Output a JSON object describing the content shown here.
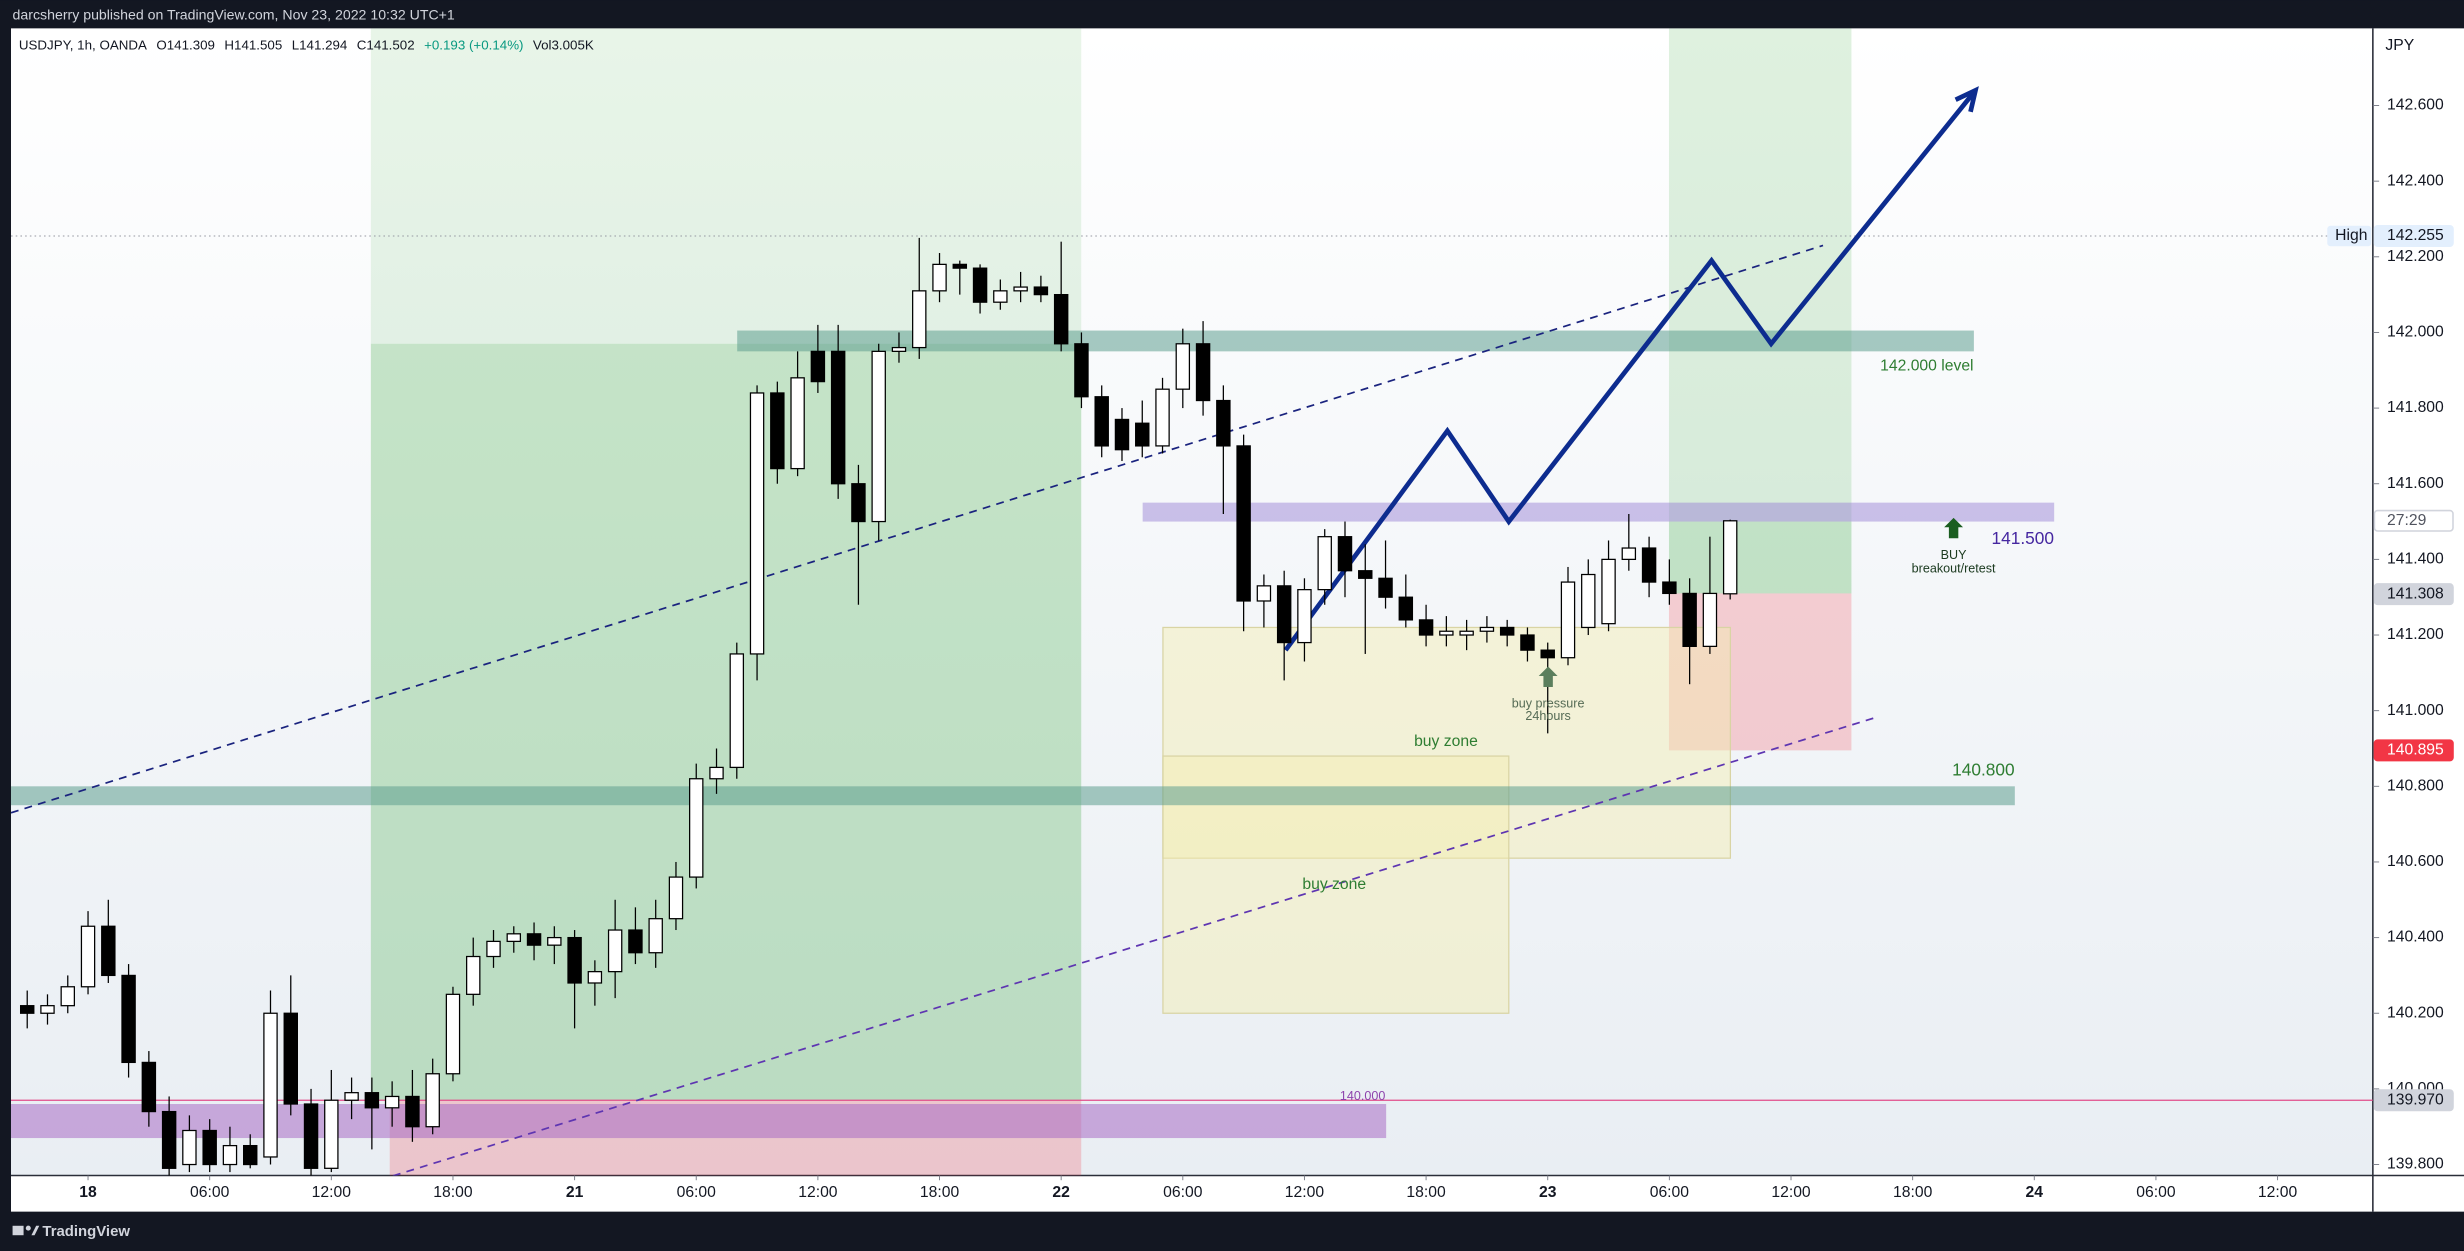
{
  "header": "darcsherry published on TradingView.com, Nov 23, 2022 10:32 UTC+1",
  "footer": "TradingView",
  "chart_data": {
    "type": "candlestick",
    "legend": {
      "symbol": "USDJPY, 1h, OANDA",
      "open": "O141.309",
      "high": "H141.505",
      "low": "L141.294",
      "close": "C141.502",
      "change": "+0.193 (+0.14%)",
      "volume": "Vol3.005K"
    },
    "currency": "JPY",
    "xlim": [
      -3.8,
      112.7
    ],
    "xticks": [
      {
        "value": 0,
        "label": "18"
      },
      {
        "value": 6,
        "label": "06:00"
      },
      {
        "value": 12,
        "label": "12:00"
      },
      {
        "value": 18,
        "label": "18:00"
      },
      {
        "value": 24,
        "label": "21"
      },
      {
        "value": 30,
        "label": "06:00"
      },
      {
        "value": 36,
        "label": "12:00"
      },
      {
        "value": 42,
        "label": "18:00"
      },
      {
        "value": 48,
        "label": "22"
      },
      {
        "value": 54,
        "label": "06:00"
      },
      {
        "value": 60,
        "label": "12:00"
      },
      {
        "value": 66,
        "label": "18:00"
      },
      {
        "value": 72,
        "label": "23"
      },
      {
        "value": 78,
        "label": "06:00"
      },
      {
        "value": 84,
        "label": "12:00"
      },
      {
        "value": 90,
        "label": "18:00"
      },
      {
        "value": 96,
        "label": "24"
      },
      {
        "value": 102,
        "label": "06:00"
      },
      {
        "value": 108,
        "label": "12:00"
      }
    ],
    "ylim": [
      139.771,
      142.804
    ],
    "yticks": [
      {
        "value": 142.6,
        "label": "142.600"
      },
      {
        "value": 142.4,
        "label": "142.400"
      },
      {
        "value": 142.2,
        "label": "142.200"
      },
      {
        "value": 142.0,
        "label": "142.000"
      },
      {
        "value": 141.8,
        "label": "141.800"
      },
      {
        "value": 141.6,
        "label": "141.600"
      },
      {
        "value": 141.4,
        "label": "141.400"
      },
      {
        "value": 141.2,
        "label": "141.200"
      },
      {
        "value": 141.0,
        "label": "141.000"
      },
      {
        "value": 140.8,
        "label": "140.800"
      },
      {
        "value": 140.6,
        "label": "140.600"
      },
      {
        "value": 140.4,
        "label": "140.400"
      },
      {
        "value": 140.2,
        "label": "140.200"
      },
      {
        "value": 140.0,
        "label": "140.000"
      },
      {
        "value": 139.8,
        "label": "139.800"
      }
    ],
    "x": [
      -3,
      -2,
      -1,
      0,
      1,
      2,
      3,
      4,
      5,
      6,
      7,
      8,
      9,
      10,
      11,
      12,
      13,
      14,
      15,
      16,
      17,
      18,
      19,
      20,
      21,
      22,
      23,
      24,
      25,
      26,
      27,
      28,
      29,
      30,
      31,
      32,
      33,
      34,
      35,
      36,
      37,
      38,
      39,
      40,
      41,
      42,
      43,
      44,
      45,
      46,
      47,
      48,
      49,
      50,
      51,
      52,
      53,
      54,
      55,
      56,
      57,
      58,
      59,
      60,
      61,
      62,
      63,
      64,
      65,
      66,
      67,
      68,
      69,
      70,
      71,
      72,
      73,
      74,
      75,
      76,
      77,
      78,
      79,
      80,
      81
    ],
    "series": [
      {
        "name": "USDJPY",
        "up_color": "#ffffff",
        "down_color": "#000000",
        "ohlc": [
          [
            140.22,
            140.26,
            140.16,
            140.2
          ],
          [
            140.2,
            140.25,
            140.17,
            140.22
          ],
          [
            140.22,
            140.3,
            140.2,
            140.27
          ],
          [
            140.27,
            140.47,
            140.25,
            140.43
          ],
          [
            140.43,
            140.5,
            140.28,
            140.3
          ],
          [
            140.3,
            140.33,
            140.03,
            140.07
          ],
          [
            140.07,
            140.1,
            139.9,
            139.94
          ],
          [
            139.94,
            139.98,
            139.77,
            139.79
          ],
          [
            139.8,
            139.93,
            139.78,
            139.89
          ],
          [
            139.89,
            139.92,
            139.78,
            139.8
          ],
          [
            139.8,
            139.9,
            139.78,
            139.85
          ],
          [
            139.85,
            139.88,
            139.79,
            139.8
          ],
          [
            139.82,
            140.26,
            139.8,
            140.2
          ],
          [
            140.2,
            140.3,
            139.93,
            139.96
          ],
          [
            139.96,
            140.0,
            139.77,
            139.79
          ],
          [
            139.79,
            140.05,
            139.78,
            139.97
          ],
          [
            139.97,
            140.03,
            139.92,
            139.99
          ],
          [
            139.99,
            140.03,
            139.84,
            139.95
          ],
          [
            139.95,
            140.02,
            139.9,
            139.98
          ],
          [
            139.98,
            140.05,
            139.86,
            139.9
          ],
          [
            139.9,
            140.08,
            139.88,
            140.04
          ],
          [
            140.04,
            140.27,
            140.02,
            140.25
          ],
          [
            140.25,
            140.4,
            140.22,
            140.35
          ],
          [
            140.35,
            140.42,
            140.32,
            140.39
          ],
          [
            140.39,
            140.43,
            140.36,
            140.41
          ],
          [
            140.41,
            140.44,
            140.34,
            140.38
          ],
          [
            140.38,
            140.43,
            140.33,
            140.4
          ],
          [
            140.4,
            140.42,
            140.16,
            140.28
          ],
          [
            140.28,
            140.34,
            140.22,
            140.31
          ],
          [
            140.31,
            140.5,
            140.24,
            140.42
          ],
          [
            140.42,
            140.48,
            140.33,
            140.36
          ],
          [
            140.36,
            140.5,
            140.32,
            140.45
          ],
          [
            140.45,
            140.6,
            140.42,
            140.56
          ],
          [
            140.56,
            140.86,
            140.53,
            140.82
          ],
          [
            140.82,
            140.9,
            140.78,
            140.85
          ],
          [
            140.85,
            141.18,
            140.82,
            141.15
          ],
          [
            141.15,
            141.86,
            141.08,
            141.84
          ],
          [
            141.84,
            141.87,
            141.6,
            141.64
          ],
          [
            141.64,
            141.95,
            141.62,
            141.88
          ],
          [
            141.95,
            142.02,
            141.84,
            141.87
          ],
          [
            141.95,
            142.02,
            141.56,
            141.6
          ],
          [
            141.6,
            141.65,
            141.28,
            141.5
          ],
          [
            141.5,
            141.97,
            141.45,
            141.95
          ],
          [
            141.95,
            142.0,
            141.92,
            141.96
          ],
          [
            141.96,
            142.25,
            141.93,
            142.11
          ],
          [
            142.11,
            142.21,
            142.08,
            142.18
          ],
          [
            142.18,
            142.19,
            142.1,
            142.17
          ],
          [
            142.17,
            142.18,
            142.05,
            142.08
          ],
          [
            142.08,
            142.14,
            142.06,
            142.11
          ],
          [
            142.11,
            142.16,
            142.08,
            142.12
          ],
          [
            142.12,
            142.15,
            142.08,
            142.1
          ],
          [
            142.1,
            142.24,
            141.95,
            141.97
          ],
          [
            141.97,
            142.0,
            141.8,
            141.83
          ],
          [
            141.83,
            141.86,
            141.67,
            141.7
          ],
          [
            141.77,
            141.8,
            141.66,
            141.69
          ],
          [
            141.76,
            141.82,
            141.67,
            141.7
          ],
          [
            141.7,
            141.88,
            141.68,
            141.85
          ],
          [
            141.85,
            142.01,
            141.8,
            141.97
          ],
          [
            141.97,
            142.03,
            141.78,
            141.82
          ],
          [
            141.82,
            141.86,
            141.52,
            141.7
          ],
          [
            141.7,
            141.73,
            141.21,
            141.29
          ],
          [
            141.29,
            141.36,
            141.22,
            141.33
          ],
          [
            141.33,
            141.37,
            141.08,
            141.18
          ],
          [
            141.18,
            141.35,
            141.13,
            141.32
          ],
          [
            141.32,
            141.48,
            141.28,
            141.46
          ],
          [
            141.46,
            141.5,
            141.3,
            141.37
          ],
          [
            141.37,
            141.44,
            141.15,
            141.35
          ],
          [
            141.35,
            141.45,
            141.27,
            141.3
          ],
          [
            141.3,
            141.36,
            141.22,
            141.24
          ],
          [
            141.24,
            141.28,
            141.17,
            141.2
          ],
          [
            141.2,
            141.25,
            141.17,
            141.21
          ],
          [
            141.2,
            141.24,
            141.16,
            141.21
          ],
          [
            141.21,
            141.25,
            141.18,
            141.22
          ],
          [
            141.22,
            141.24,
            141.17,
            141.2
          ],
          [
            141.2,
            141.22,
            141.13,
            141.16
          ],
          [
            141.16,
            141.18,
            140.94,
            141.14
          ],
          [
            141.14,
            141.38,
            141.12,
            141.34
          ],
          [
            141.22,
            141.4,
            141.2,
            141.36
          ],
          [
            141.23,
            141.45,
            141.21,
            141.4
          ],
          [
            141.4,
            141.52,
            141.37,
            141.43
          ],
          [
            141.43,
            141.46,
            141.3,
            141.34
          ],
          [
            141.34,
            141.4,
            141.28,
            141.31
          ],
          [
            141.31,
            141.35,
            141.07,
            141.17
          ],
          [
            141.17,
            141.46,
            141.15,
            141.31
          ],
          [
            141.309,
            141.505,
            141.294,
            141.502
          ]
        ]
      }
    ],
    "zones": [
      {
        "x": [
          13.95,
          48.99
        ],
        "y": [
          141.97,
          142.804
        ],
        "color": "#4caf50",
        "opacity": 0.13
      },
      {
        "x": [
          13.95,
          48.99
        ],
        "y": [
          139.97,
          141.97
        ],
        "color": "#4caf50",
        "opacity": 0.3
      },
      {
        "x": [
          14.88,
          48.99
        ],
        "y": [
          139.771,
          139.97
        ],
        "color": "#f23645",
        "opacity": 0.22
      },
      {
        "x": [
          77.98,
          86.98
        ],
        "y": [
          141.31,
          142.804
        ],
        "color": "#4caf50",
        "opacity": 0.18
      },
      {
        "x": [
          77.98,
          86.98
        ],
        "y": [
          141.31,
          141.5
        ],
        "color": "#4caf50",
        "opacity": 0.15
      },
      {
        "x": [
          77.98,
          86.98
        ],
        "y": [
          140.895,
          141.31
        ],
        "color": "#f23645",
        "opacity": 0.22
      },
      {
        "x": [
          53.02,
          81.01
        ],
        "y": [
          140.61,
          141.22
        ],
        "color": "#f3eeb0",
        "opacity": 0.45,
        "border": "#d9d4a4"
      },
      {
        "x": [
          53.02,
          70.08
        ],
        "y": [
          140.2,
          140.88
        ],
        "color": "#f3eeb0",
        "opacity": 0.45,
        "border": "#d9d4a4"
      },
      {
        "x": [
          32.02,
          93.02
        ],
        "y": [
          141.95,
          142.005
        ],
        "color": "#5f9e8f",
        "opacity": 0.55
      },
      {
        "x": [
          52.02,
          96.98
        ],
        "y": [
          141.5,
          141.55
        ],
        "color": "#9b86d6",
        "opacity": 0.5
      },
      {
        "x": [
          -3.8,
          95.04
        ],
        "y": [
          140.75,
          140.8
        ],
        "color": "#5f9e8f",
        "opacity": 0.55
      },
      {
        "x": [
          -3.8,
          64.03
        ],
        "y": [
          139.87,
          139.96
        ],
        "color": "#a76cc4",
        "opacity": 0.55
      }
    ],
    "lines": [
      {
        "x": [
          -3.8,
          112.7
        ],
        "y": [
          142.255,
          142.255
        ],
        "color": "#9598a1",
        "width": 0.6,
        "dash": "1 2"
      },
      {
        "x": [
          -3.8,
          112.7
        ],
        "y": [
          139.97,
          139.97
        ],
        "color": "#e04c8a",
        "width": 0.8
      },
      {
        "x": [
          -3.8,
          85.58
        ],
        "y": [
          140.73,
          142.23
        ],
        "color": "#1a237e",
        "width": 1.1,
        "dash": "5 4"
      },
      {
        "x": [
          15.04,
          88.06
        ],
        "y": [
          139.77,
          140.98
        ],
        "color": "#5e35b1",
        "width": 1.1,
        "dash": "5 4"
      },
      {
        "x": [
          59.07,
          67.05,
          70.08,
          80.08,
          83.02,
          93.1
        ],
        "y": [
          141.16,
          141.74,
          141.5,
          142.19,
          141.97,
          142.64
        ],
        "color": "#0d2c8f",
        "width": 3,
        "arrow": true
      }
    ],
    "annotations": [
      {
        "text": "142.000 level",
        "x": 90.7,
        "y": 141.91,
        "color": "#2e7d32",
        "size": 10
      },
      {
        "text": "141.500",
        "x": 95.43,
        "y": 141.453,
        "color": "#4527a0",
        "size": 11
      },
      {
        "text": "140.800",
        "x": 93.49,
        "y": 140.84,
        "color": "#2e7d32",
        "size": 11
      },
      {
        "text": "140.000",
        "x": 62.87,
        "y": 139.98,
        "color": "#8e44ad",
        "size": 8
      },
      {
        "text": "BUY",
        "x": 92.02,
        "y": 141.41,
        "color": "#1b3a1f",
        "size": 8,
        "arrow": "#1b5e20"
      },
      {
        "text": "breakout/retest",
        "x": 92.02,
        "y": 141.374,
        "color": "#1b3a1f",
        "size": 8
      },
      {
        "text": "buy pressure",
        "x": 72.02,
        "y": 141.017,
        "color": "#556b55",
        "size": 8,
        "arrow": "#5b7f5d"
      },
      {
        "text": "24hours",
        "x": 72.02,
        "y": 140.984,
        "color": "#556b55",
        "size": 8
      },
      {
        "text": "buy zone",
        "x": 66.98,
        "y": 140.917,
        "color": "#2e7d32",
        "size": 10
      },
      {
        "text": "buy zone",
        "x": 61.47,
        "y": 140.539,
        "color": "#2e7d32",
        "size": 10
      }
    ],
    "price_badges": [
      {
        "value": 142.255,
        "label": "142.255",
        "tag": "High",
        "color": "#e3effd",
        "text_color": "#131722"
      },
      {
        "value": 141.502,
        "label": "27:29",
        "color": "#ffffff",
        "text_color": "#50535e"
      },
      {
        "value": 141.308,
        "label": "141.308",
        "color": "#d1d4dc",
        "text_color": "#131722"
      },
      {
        "value": 140.895,
        "label": "140.895",
        "color": "#f23645",
        "text_color": "#ffffff"
      },
      {
        "value": 139.97,
        "label": "139.970",
        "color": "#d1d4dc",
        "text_color": "#131722"
      }
    ]
  }
}
